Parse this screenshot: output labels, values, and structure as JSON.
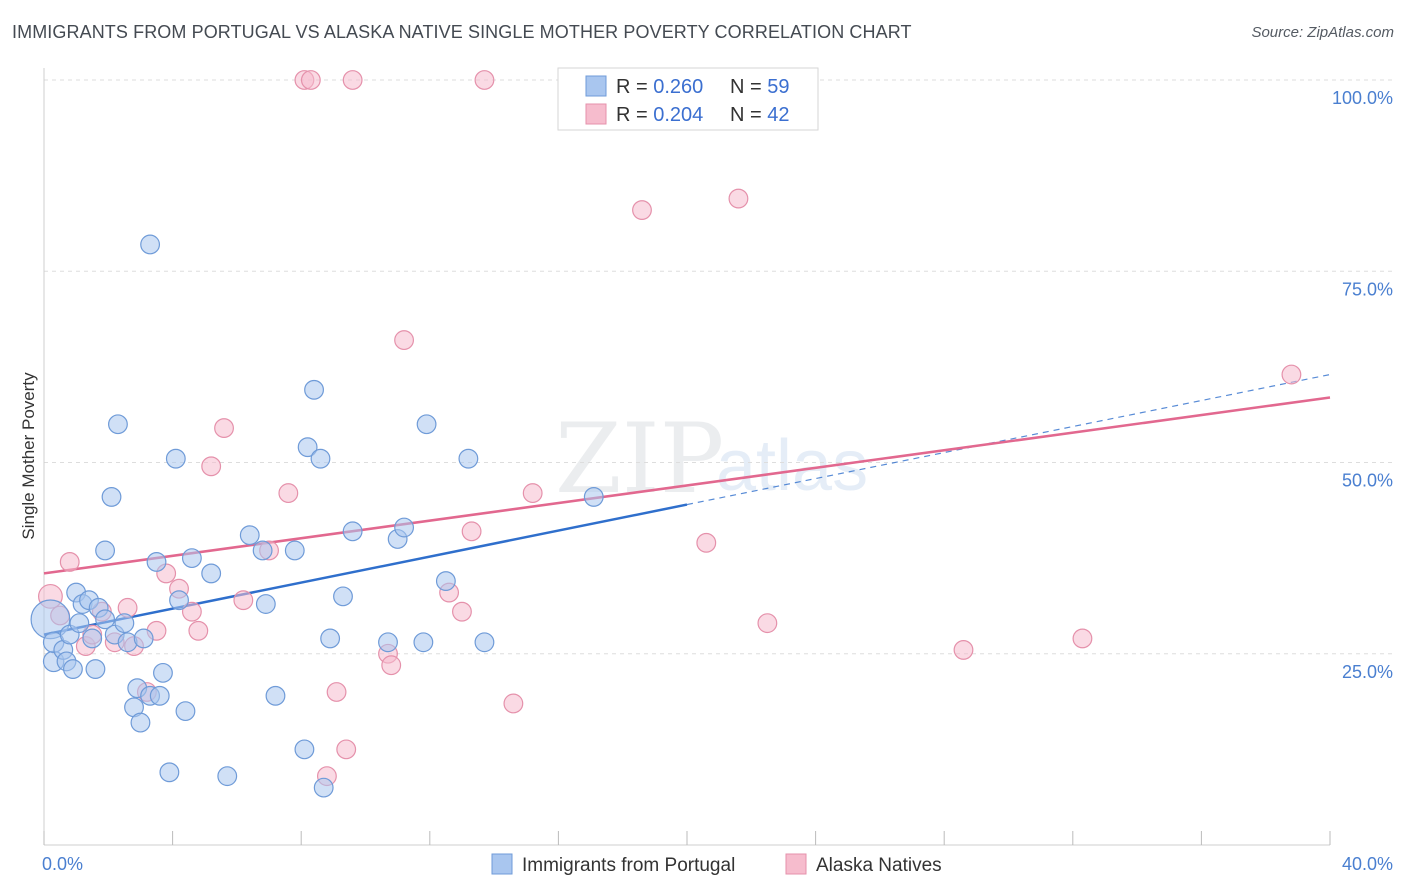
{
  "title": "IMMIGRANTS FROM PORTUGAL VS ALASKA NATIVE SINGLE MOTHER POVERTY CORRELATION CHART",
  "source": "Source: ZipAtlas.com",
  "watermark": {
    "zip": "ZIP",
    "atlas": "atlas"
  },
  "colors": {
    "blue_fill": "#a9c6ef",
    "blue_stroke": "#6f9bd8",
    "blue_line": "#2f6fcc",
    "pink_fill": "#f6bccd",
    "pink_stroke": "#e591ab",
    "pink_line": "#e2688f",
    "grid": "#dddddd",
    "tick_label": "#4a7fd0"
  },
  "chart_data": {
    "type": "scatter",
    "title": "IMMIGRANTS FROM PORTUGAL VS ALASKA NATIVE SINGLE MOTHER POVERTY CORRELATION CHART",
    "xlabel": "",
    "ylabel": "Single Mother Poverty",
    "xlim": [
      0,
      40
    ],
    "ylim": [
      0,
      100
    ],
    "x_tick_labels": [
      {
        "value": 0,
        "label": "0.0%"
      },
      {
        "value": 40,
        "label": "40.0%"
      }
    ],
    "y_tick_labels": [
      {
        "value": 25,
        "label": "25.0%"
      },
      {
        "value": 50,
        "label": "50.0%"
      },
      {
        "value": 75,
        "label": "75.0%"
      },
      {
        "value": 100,
        "label": "100.0%"
      }
    ],
    "grid": true,
    "legend_position": "top-center",
    "series": [
      {
        "name": "Immigrants from Portugal",
        "r_label": "R = ",
        "r_value": "0.260",
        "n_label": "N = ",
        "n_value": "59",
        "color": "#a9c6ef",
        "trend": {
          "x0": 0,
          "y0": 27.5,
          "x1": 20,
          "y1": 44.5,
          "dash_to_x": 40,
          "dash_to_y": 61.5
        },
        "points": [
          [
            0.2,
            29.5,
            22
          ],
          [
            0.3,
            24,
            11
          ],
          [
            0.3,
            26.5,
            11
          ],
          [
            0.6,
            25.5,
            10
          ],
          [
            0.7,
            24,
            10
          ],
          [
            0.8,
            27.5,
            10
          ],
          [
            0.9,
            23,
            10
          ],
          [
            1.0,
            33,
            10
          ],
          [
            1.1,
            29,
            10
          ],
          [
            1.2,
            31.5,
            10
          ],
          [
            1.4,
            32,
            10
          ],
          [
            1.5,
            27,
            10
          ],
          [
            1.6,
            23,
            10
          ],
          [
            1.7,
            31,
            10
          ],
          [
            1.9,
            29.5,
            10
          ],
          [
            1.9,
            38.5,
            10
          ],
          [
            2.1,
            45.5,
            10
          ],
          [
            2.2,
            27.5,
            10
          ],
          [
            2.3,
            55,
            10
          ],
          [
            2.5,
            29,
            10
          ],
          [
            2.6,
            26.5,
            10
          ],
          [
            2.8,
            18,
            10
          ],
          [
            2.9,
            20.5,
            10
          ],
          [
            3.0,
            16,
            10
          ],
          [
            3.1,
            27,
            10
          ],
          [
            3.3,
            19.5,
            10
          ],
          [
            3.3,
            78.5,
            10
          ],
          [
            3.5,
            37,
            10
          ],
          [
            3.6,
            19.5,
            10
          ],
          [
            3.7,
            22.5,
            10
          ],
          [
            3.9,
            9.5,
            10
          ],
          [
            4.1,
            50.5,
            10
          ],
          [
            4.2,
            32,
            10
          ],
          [
            4.4,
            17.5,
            10
          ],
          [
            4.6,
            37.5,
            10
          ],
          [
            5.2,
            35.5,
            10
          ],
          [
            5.7,
            9,
            10
          ],
          [
            6.4,
            40.5,
            10
          ],
          [
            6.8,
            38.5,
            10
          ],
          [
            6.9,
            31.5,
            10
          ],
          [
            7.2,
            19.5,
            10
          ],
          [
            7.8,
            38.5,
            10
          ],
          [
            8.1,
            12.5,
            10
          ],
          [
            8.2,
            52,
            10
          ],
          [
            8.4,
            59.5,
            10
          ],
          [
            8.6,
            50.5,
            10
          ],
          [
            8.7,
            7.5,
            10
          ],
          [
            8.9,
            27,
            10
          ],
          [
            9.3,
            32.5,
            10
          ],
          [
            9.6,
            41,
            10
          ],
          [
            10.7,
            26.5,
            10
          ],
          [
            11.0,
            40,
            10
          ],
          [
            11.2,
            41.5,
            10
          ],
          [
            11.8,
            26.5,
            10
          ],
          [
            11.9,
            55,
            10
          ],
          [
            12.5,
            34.5,
            10
          ],
          [
            13.2,
            50.5,
            10
          ],
          [
            13.7,
            26.5,
            10
          ],
          [
            17.1,
            45.5,
            10
          ]
        ]
      },
      {
        "name": "Alaska Natives",
        "r_label": "R = ",
        "r_value": "0.204",
        "n_label": "N = ",
        "n_value": "42",
        "color": "#f6bccd",
        "trend": {
          "x0": 0,
          "y0": 35.5,
          "x1": 40,
          "y1": 58.5
        },
        "points": [
          [
            0.2,
            32.5,
            13
          ],
          [
            0.5,
            30,
            10
          ],
          [
            0.8,
            37,
            10
          ],
          [
            1.3,
            26,
            10
          ],
          [
            1.5,
            27.5,
            10
          ],
          [
            1.8,
            30.5,
            10
          ],
          [
            2.2,
            26.5,
            10
          ],
          [
            2.6,
            31,
            10
          ],
          [
            2.8,
            26,
            10
          ],
          [
            3.2,
            20,
            10
          ],
          [
            3.5,
            28,
            10
          ],
          [
            3.8,
            35.5,
            10
          ],
          [
            4.2,
            33.5,
            10
          ],
          [
            4.6,
            30.5,
            10
          ],
          [
            4.8,
            28,
            10
          ],
          [
            5.2,
            49.5,
            10
          ],
          [
            5.6,
            54.5,
            10
          ],
          [
            6.2,
            32,
            10
          ],
          [
            7.0,
            38.5,
            10
          ],
          [
            7.6,
            46,
            10
          ],
          [
            8.1,
            100,
            10
          ],
          [
            8.3,
            100,
            10
          ],
          [
            8.8,
            9,
            10
          ],
          [
            9.1,
            20,
            10
          ],
          [
            9.4,
            12.5,
            10
          ],
          [
            9.6,
            100,
            10
          ],
          [
            10.7,
            25,
            10
          ],
          [
            10.8,
            23.5,
            10
          ],
          [
            11.2,
            66,
            10
          ],
          [
            12.6,
            33,
            10
          ],
          [
            13.0,
            30.5,
            10
          ],
          [
            13.3,
            41,
            10
          ],
          [
            13.7,
            100,
            10
          ],
          [
            14.6,
            18.5,
            10
          ],
          [
            15.2,
            46,
            10
          ],
          [
            18.6,
            83,
            10
          ],
          [
            20.6,
            39.5,
            10
          ],
          [
            21.6,
            84.5,
            10
          ],
          [
            22.5,
            29,
            10
          ],
          [
            28.6,
            25.5,
            10
          ],
          [
            32.3,
            27,
            10
          ],
          [
            38.8,
            61.5,
            10
          ]
        ]
      }
    ]
  }
}
